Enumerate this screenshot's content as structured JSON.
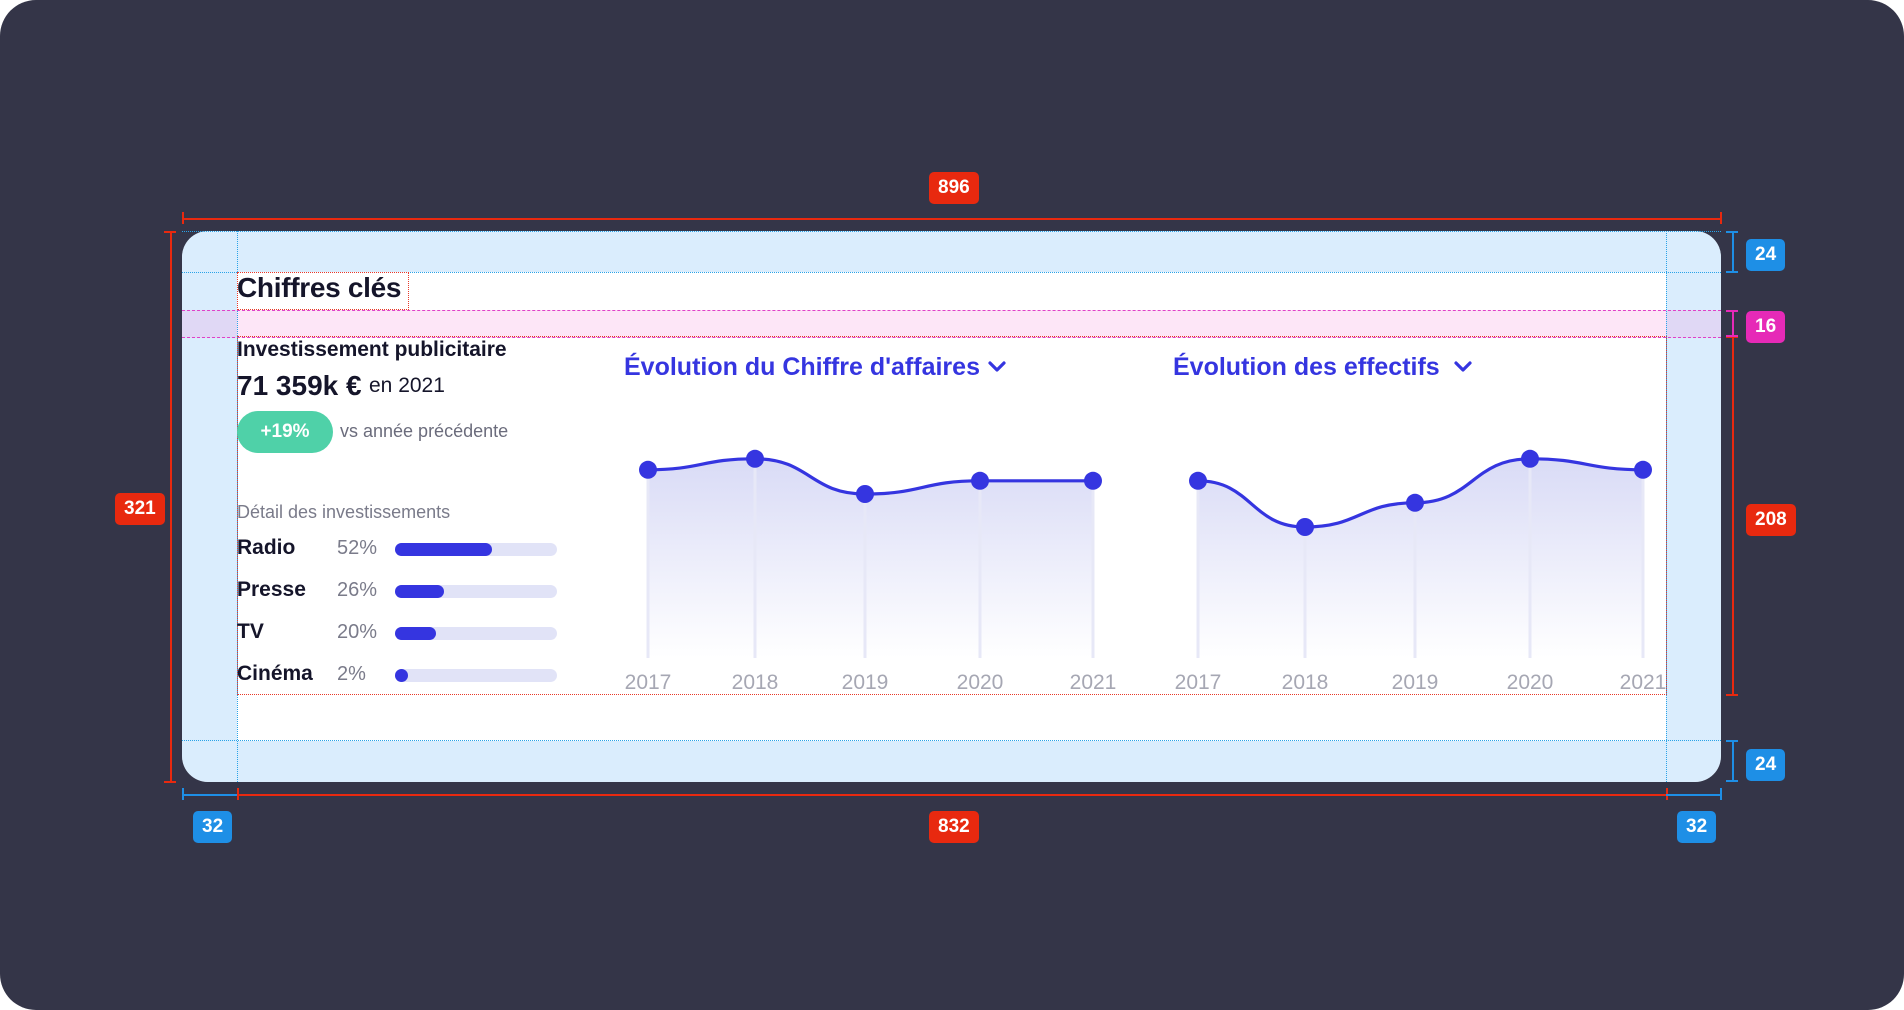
{
  "annotations": {
    "total_width": "896",
    "content_width": "832",
    "total_height": "321",
    "content_height": "208",
    "padding_top": "24",
    "padding_bottom": "24",
    "padding_left": "32",
    "padding_right": "32",
    "gap": "16"
  },
  "card": {
    "title": "Chiffres clés",
    "investment": {
      "title": "Investissement publicitaire",
      "value": "71 359k €",
      "year": "en 2021",
      "badge": "+19%",
      "badge_caption": "vs année précédente",
      "detail_title": "Détail des investissements",
      "rows": [
        {
          "label": "Radio",
          "pct": "52%",
          "fill": 0.6
        },
        {
          "label": "Presse",
          "pct": "26%",
          "fill": 0.3
        },
        {
          "label": "TV",
          "pct": "20%",
          "fill": 0.25
        },
        {
          "label": "Cinéma",
          "pct": "2%",
          "fill": 0.07
        }
      ]
    },
    "colors": {
      "accent": "#3535e0",
      "badge": "#4fd1a8",
      "track": "#e1e3f7"
    }
  },
  "chart_data": [
    {
      "type": "area",
      "title": "Évolution du Chiffre d'affaires",
      "x": [
        "2017",
        "2018",
        "2019",
        "2020",
        "2021"
      ],
      "series": [
        {
          "values": [
            0.82,
            0.92,
            0.6,
            0.72,
            0.72
          ]
        }
      ],
      "icon": "chevron-down-icon"
    },
    {
      "type": "area",
      "title": "Évolution des effectifs",
      "x": [
        "2017",
        "2018",
        "2019",
        "2020",
        "2021"
      ],
      "series": [
        {
          "values": [
            0.72,
            0.3,
            0.52,
            0.92,
            0.82
          ]
        }
      ],
      "icon": "chevron-down-icon"
    }
  ]
}
